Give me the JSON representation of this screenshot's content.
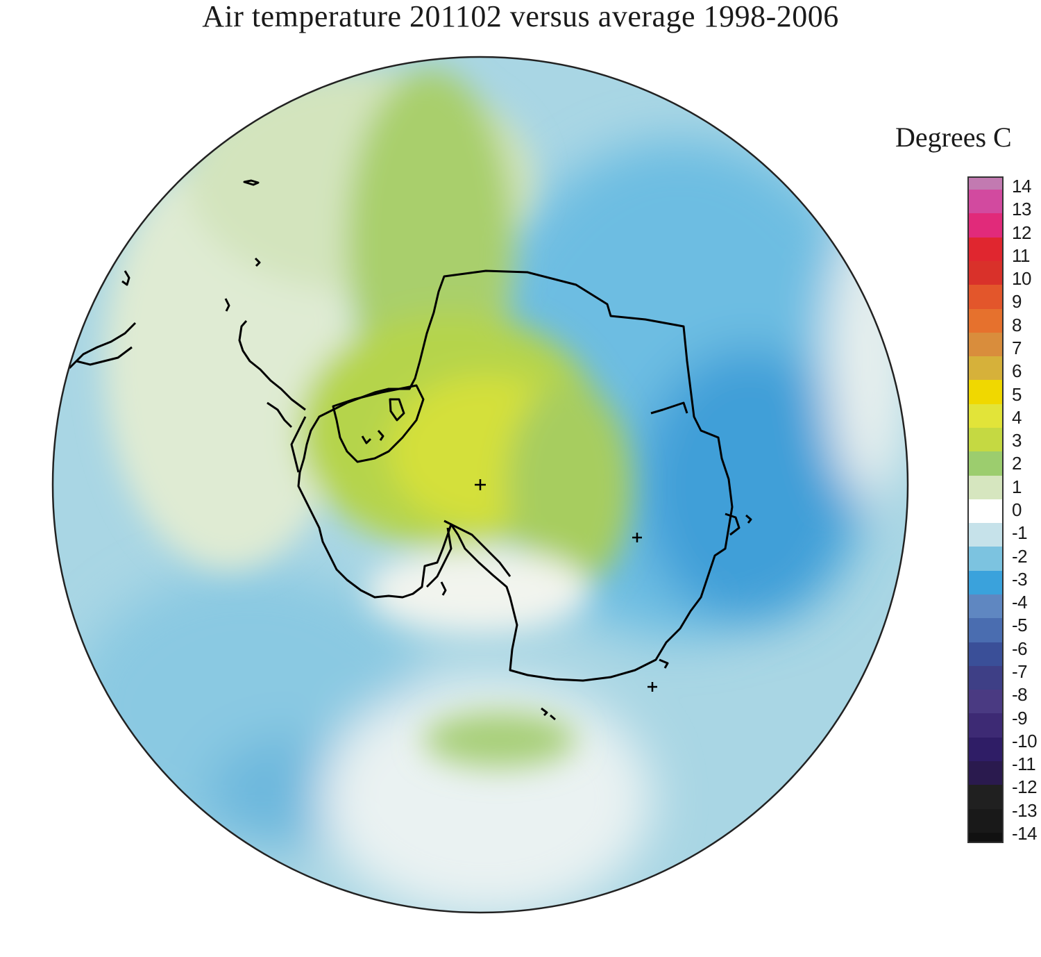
{
  "title": "Air temperature 201102 versus average 1998-2006",
  "legend": {
    "title": "Degrees C",
    "ticks": [
      "14",
      "13",
      "12",
      "11",
      "10",
      "9",
      "8",
      "7",
      "6",
      "5",
      "4",
      "3",
      "2",
      "1",
      "0",
      "-1",
      "-2",
      "-3",
      "-4",
      "-5",
      "-6",
      "-7",
      "-8",
      "-9",
      "-10",
      "-11",
      "-12",
      "-13",
      "-14"
    ],
    "colors": {
      "14": "#c27ab1",
      "13": "#d24a9f",
      "12": "#e12a7a",
      "11": "#e0262f",
      "10": "#d9312a",
      "9": "#e3562b",
      "8": "#e6712d",
      "7": "#d98d3c",
      "6": "#d6b13a",
      "5": "#f0d800",
      "4": "#e2e439",
      "3": "#c5d942",
      "2": "#9ccd6e",
      "1": "#d6e6bf",
      "0": "#ffffff",
      "-1": "#c6e2ea",
      "-2": "#7cc3e0",
      "-3": "#3aa2dc",
      "-4": "#5f87c1",
      "-5": "#4a6db0",
      "-6": "#3a4f98",
      "-7": "#3e3f86",
      "-8": "#4a3a82",
      "-9": "#3d2a74",
      "-10": "#2f1d66",
      "-11": "#2a1a4e",
      "-12": "#202020",
      "-13": "#191919",
      "-14": "#111111"
    }
  },
  "colors": {
    "warm_center": "#d6df3c",
    "cold_east": "#3aa2dc",
    "coastline": "#000000",
    "disk_border": "#222222"
  }
}
